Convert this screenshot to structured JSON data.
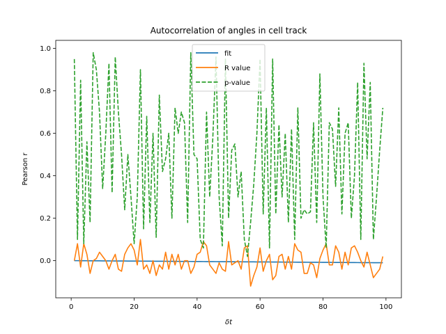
{
  "chart_data": {
    "type": "line",
    "title": "Autocorrelation of angles in cell track",
    "xlabel": "δt",
    "ylabel": "Pearson r",
    "xlim": [
      -4.9,
      104.9
    ],
    "ylim": [
      -0.175,
      1.038
    ],
    "xticks": [
      0,
      20,
      40,
      60,
      80,
      100
    ],
    "yticks": [
      0.0,
      0.2,
      0.4,
      0.6,
      0.8,
      1.0
    ],
    "xtick_labels": [
      "0",
      "20",
      "40",
      "60",
      "80",
      "100"
    ],
    "ytick_labels": [
      "0.0",
      "0.2",
      "0.4",
      "0.6",
      "0.8",
      "1.0"
    ],
    "legend_position": "upper center",
    "grid": false,
    "x": [
      1,
      2,
      3,
      4,
      5,
      6,
      7,
      8,
      9,
      10,
      11,
      12,
      13,
      14,
      15,
      16,
      17,
      18,
      19,
      20,
      21,
      22,
      23,
      24,
      25,
      26,
      27,
      28,
      29,
      30,
      31,
      32,
      33,
      34,
      35,
      36,
      37,
      38,
      39,
      40,
      41,
      42,
      43,
      44,
      45,
      46,
      47,
      48,
      49,
      50,
      51,
      52,
      53,
      54,
      55,
      56,
      57,
      58,
      59,
      60,
      61,
      62,
      63,
      64,
      65,
      66,
      67,
      68,
      69,
      70,
      71,
      72,
      73,
      74,
      75,
      76,
      77,
      78,
      79,
      80,
      81,
      82,
      83,
      84,
      85,
      86,
      87,
      88,
      89,
      90,
      91,
      92,
      93,
      94,
      95,
      96,
      97,
      98,
      99
    ],
    "series": [
      {
        "name": "fit",
        "color": "#1f77b4",
        "style": "solid",
        "values": [
          0.0,
          0.0,
          -0.0002,
          -0.0003,
          -0.0004,
          -0.0005,
          -0.0006,
          -0.0007,
          -0.0008,
          -0.0009,
          -0.001,
          -0.0011,
          -0.0012,
          -0.0013,
          -0.0014,
          -0.0015,
          -0.0016,
          -0.0017,
          -0.0018,
          -0.0019,
          -0.002,
          -0.0021,
          -0.0022,
          -0.0023,
          -0.0024,
          -0.0025,
          -0.0026,
          -0.0027,
          -0.0028,
          -0.0029,
          -0.003,
          -0.0031,
          -0.0032,
          -0.0033,
          -0.0034,
          -0.0035,
          -0.0036,
          -0.0037,
          -0.0038,
          -0.0039,
          -0.004,
          -0.0041,
          -0.0042,
          -0.0043,
          -0.0044,
          -0.0045,
          -0.0046,
          -0.0047,
          -0.0048,
          -0.0049,
          -0.005,
          -0.0051,
          -0.0052,
          -0.0053,
          -0.0054,
          -0.0055,
          -0.0056,
          -0.0057,
          -0.0058,
          -0.0059,
          -0.006,
          -0.0061,
          -0.0062,
          -0.0063,
          -0.0064,
          -0.0065,
          -0.0066,
          -0.0067,
          -0.0068,
          -0.0069,
          -0.007,
          -0.0071,
          -0.0072,
          -0.0073,
          -0.0074,
          -0.0075,
          -0.0076,
          -0.0077,
          -0.0078,
          -0.0079,
          -0.008,
          -0.0081,
          -0.0082,
          -0.0083,
          -0.0084,
          -0.0085,
          -0.0086,
          -0.0087,
          -0.0088,
          -0.0089,
          -0.009,
          -0.0091,
          -0.0092,
          -0.0093,
          -0.0094,
          -0.0095,
          -0.0096,
          -0.0097,
          -0.0098
        ]
      },
      {
        "name": "R value",
        "color": "#ff7f0e",
        "style": "solid",
        "values": [
          0.0,
          0.08,
          -0.03,
          0.08,
          0.03,
          -0.06,
          0.0,
          0.01,
          0.04,
          0.02,
          0.0,
          -0.04,
          0.0,
          0.03,
          -0.04,
          -0.05,
          0.03,
          0.06,
          0.08,
          0.05,
          -0.02,
          0.1,
          -0.04,
          -0.02,
          -0.06,
          0.0,
          -0.07,
          -0.02,
          -0.04,
          0.04,
          -0.04,
          0.03,
          -0.02,
          0.03,
          -0.04,
          0.0,
          0.0,
          -0.06,
          -0.03,
          0.03,
          0.04,
          0.09,
          0.07,
          -0.02,
          -0.04,
          -0.06,
          -0.01,
          -0.04,
          -0.05,
          0.09,
          -0.02,
          -0.01,
          0.0,
          -0.04,
          0.06,
          0.07,
          -0.12,
          -0.07,
          -0.03,
          0.06,
          -0.05,
          0.0,
          0.03,
          -0.09,
          -0.07,
          0.02,
          0.03,
          -0.04,
          0.02,
          -0.04,
          0.08,
          0.05,
          0.04,
          -0.06,
          -0.06,
          -0.01,
          -0.02,
          -0.08,
          0.01,
          0.05,
          0.08,
          -0.02,
          -0.02,
          0.07,
          0.04,
          -0.04,
          0.04,
          -0.02,
          0.06,
          0.07,
          0.04,
          0.0,
          -0.03,
          0.04,
          -0.02,
          -0.08,
          -0.06,
          -0.04,
          0.02
        ]
      },
      {
        "name": "p-value",
        "color": "#2ca02c",
        "style": "dashed",
        "values": [
          0.95,
          0.1,
          0.85,
          0.08,
          0.56,
          0.18,
          0.98,
          0.9,
          0.7,
          0.34,
          0.6,
          0.93,
          0.32,
          0.96,
          0.7,
          0.5,
          0.24,
          0.5,
          0.3,
          0.08,
          0.3,
          0.9,
          0.15,
          0.68,
          0.18,
          0.6,
          0.11,
          0.78,
          0.42,
          0.48,
          0.6,
          0.2,
          0.72,
          0.6,
          0.7,
          0.65,
          0.18,
          0.98,
          0.5,
          0.48,
          0.1,
          0.06,
          0.7,
          0.3,
          0.58,
          0.96,
          0.3,
          0.07,
          0.95,
          0.2,
          0.52,
          0.55,
          0.3,
          0.42,
          0.1,
          0.02,
          0.18,
          0.36,
          0.6,
          0.95,
          0.22,
          0.72,
          0.06,
          0.95,
          0.22,
          0.64,
          0.3,
          0.6,
          0.18,
          0.62,
          0.1,
          0.72,
          0.2,
          0.24,
          0.22,
          0.23,
          0.65,
          0.18,
          0.88,
          0.3,
          0.06,
          0.65,
          0.62,
          0.35,
          0.72,
          0.22,
          0.6,
          0.65,
          0.2,
          0.4,
          0.84,
          0.1,
          0.93,
          0.48,
          0.84,
          0.1,
          0.3,
          0.52,
          0.72
        ]
      }
    ]
  }
}
